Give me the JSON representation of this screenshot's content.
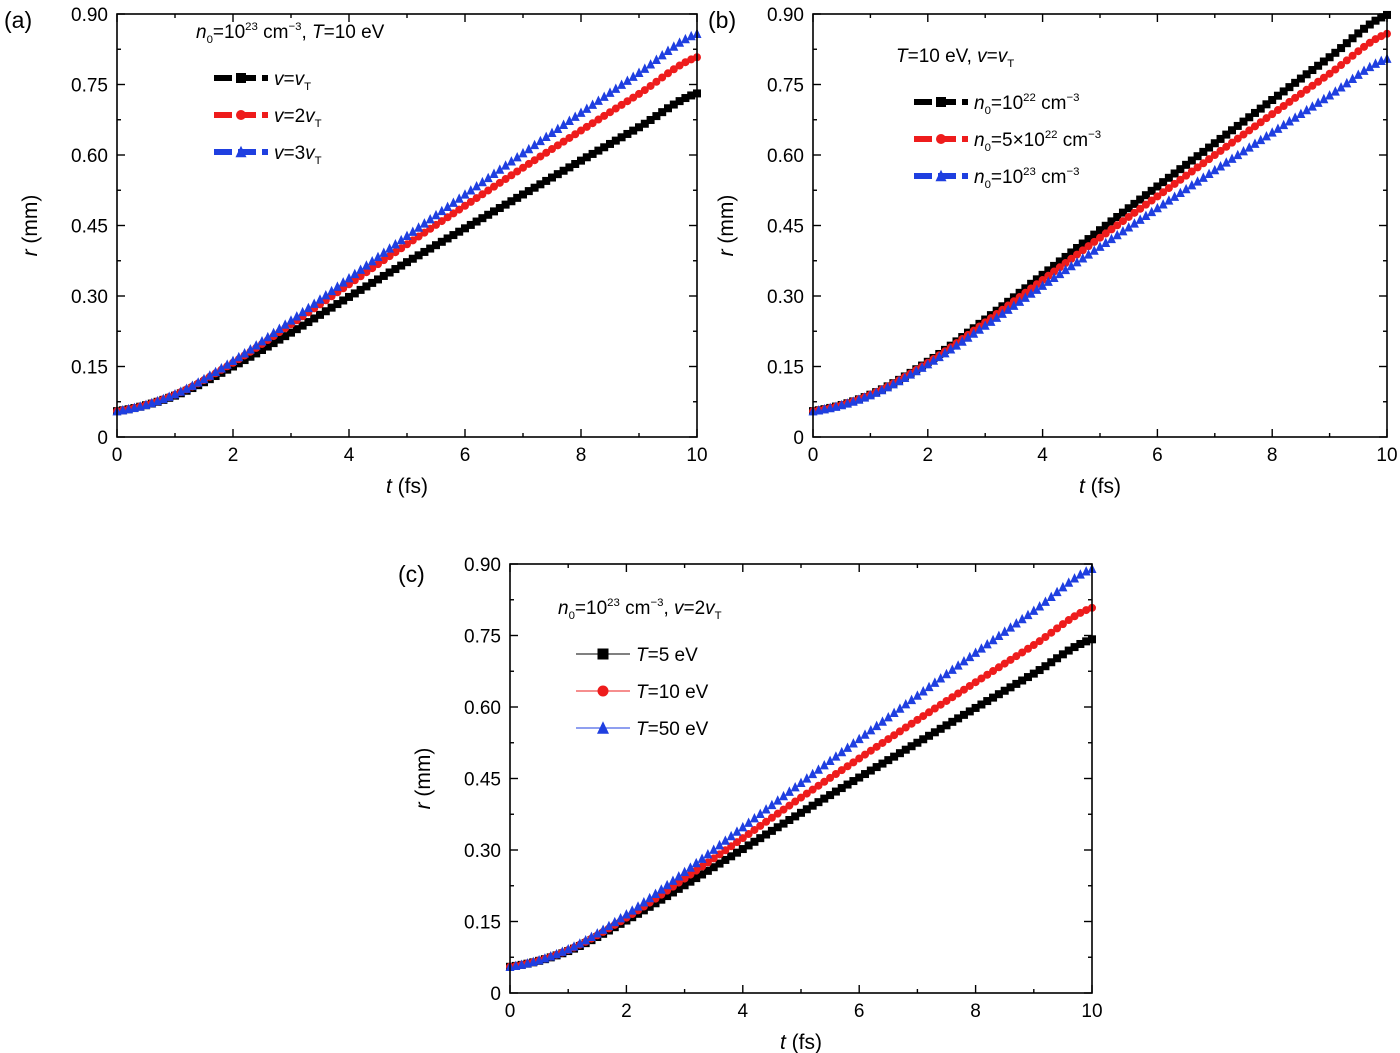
{
  "chart_data": [
    {
      "type": "scatter",
      "panel": "(a)",
      "condition_parts": [
        [
          "n",
          "0",
          "",
          "=10",
          "23",
          " cm",
          "−3",
          ",  "
        ],
        [
          "T",
          "",
          "",
          "=10 eV",
          "",
          "",
          "",
          ""
        ]
      ],
      "xlabel": {
        "var": "t",
        "unit": " (fs)"
      },
      "ylabel": {
        "var": "r",
        "unit": " (mm)"
      },
      "xlim": [
        0,
        10
      ],
      "ylim": [
        0,
        0.9
      ],
      "xticks": [
        0,
        2,
        4,
        6,
        8,
        10
      ],
      "xtick_labels": [
        "0",
        "2",
        "4",
        "6",
        "8",
        "10"
      ],
      "yticks": [
        0,
        0.15,
        0.3,
        0.45,
        0.6,
        0.75,
        0.9
      ],
      "ytick_labels": [
        "0",
        "0.15",
        "0.30",
        "0.45",
        "0.60",
        "0.75",
        "0.90"
      ],
      "legend_placement": "top-left",
      "legend_style": "thick",
      "series": [
        {
          "name": "v=vT",
          "label_parts": [
            [
              "v",
              "",
              "",
              "=",
              "",
              "",
              "",
              ""
            ],
            [
              "v",
              "T",
              "",
              "",
              "",
              "",
              "",
              ""
            ]
          ],
          "color": "#000000",
          "marker": "square",
          "x": [
            0,
            1,
            2,
            3,
            4,
            5,
            6,
            7,
            8,
            9,
            10
          ],
          "y": [
            0.055,
            0.088,
            0.15,
            0.222,
            0.298,
            0.372,
            0.444,
            0.516,
            0.588,
            0.659,
            0.731
          ]
        },
        {
          "name": "v=2vT",
          "label_parts": [
            [
              "v",
              "",
              "",
              "=2",
              "",
              "",
              "",
              ""
            ],
            [
              "v",
              "T",
              "",
              "",
              "",
              "",
              "",
              ""
            ]
          ],
          "color": "#ee1c1c",
          "marker": "circle",
          "x": [
            0,
            1,
            2,
            3,
            4,
            5,
            6,
            7,
            8,
            9,
            10
          ],
          "y": [
            0.055,
            0.09,
            0.158,
            0.24,
            0.325,
            0.41,
            0.492,
            0.573,
            0.652,
            0.73,
            0.808
          ]
        },
        {
          "name": "v=3vT",
          "label_parts": [
            [
              "v",
              "",
              "",
              "=3",
              "",
              "",
              "",
              ""
            ],
            [
              "v",
              "T",
              "",
              "",
              "",
              "",
              "",
              ""
            ]
          ],
          "color": "#1f3fe0",
          "marker": "triangle",
          "x": [
            0,
            1,
            2,
            3,
            4,
            5,
            6,
            7,
            8,
            9,
            10
          ],
          "y": [
            0.055,
            0.091,
            0.162,
            0.248,
            0.338,
            0.428,
            0.516,
            0.604,
            0.69,
            0.775,
            0.858
          ]
        }
      ]
    },
    {
      "type": "scatter",
      "panel": "(b)",
      "condition_parts": [
        [
          "T",
          "",
          "",
          "=10 eV,  ",
          "",
          "",
          "",
          ""
        ],
        [
          "v",
          "",
          "",
          "=",
          "",
          "",
          "",
          ""
        ],
        [
          "v",
          "T",
          "",
          "",
          "",
          "",
          "",
          ""
        ]
      ],
      "xlabel": {
        "var": "t",
        "unit": " (fs)"
      },
      "ylabel": {
        "var": "r",
        "unit": " (mm)"
      },
      "xlim": [
        0,
        10
      ],
      "ylim": [
        0,
        0.9
      ],
      "xticks": [
        0,
        2,
        4,
        6,
        8,
        10
      ],
      "xtick_labels": [
        "0",
        "2",
        "4",
        "6",
        "8",
        "10"
      ],
      "yticks": [
        0,
        0.15,
        0.3,
        0.45,
        0.6,
        0.75,
        0.9
      ],
      "ytick_labels": [
        "0",
        "0.15",
        "0.30",
        "0.45",
        "0.60",
        "0.75",
        "0.90"
      ],
      "legend_placement": "top-left",
      "legend_style": "thick",
      "series": [
        {
          "name": "n0=10^22 cm^-3",
          "label_parts": [
            [
              "n",
              "0",
              "",
              "=10",
              "22",
              " cm",
              "−3",
              ""
            ]
          ],
          "color": "#000000",
          "marker": "square",
          "x": [
            0,
            1,
            2,
            3,
            4,
            5,
            6,
            7,
            8,
            9,
            10
          ],
          "y": [
            0.055,
            0.09,
            0.16,
            0.25,
            0.345,
            0.44,
            0.533,
            0.625,
            0.717,
            0.808,
            0.898
          ]
        },
        {
          "name": "n0=5×10^22 cm^-3",
          "label_parts": [
            [
              "n",
              "0",
              "",
              "=5×10",
              "22",
              " cm",
              "−3",
              ""
            ]
          ],
          "color": "#ee1c1c",
          "marker": "circle",
          "x": [
            0,
            1,
            2,
            3,
            4,
            5,
            6,
            7,
            8,
            9,
            10
          ],
          "y": [
            0.055,
            0.09,
            0.158,
            0.244,
            0.334,
            0.424,
            0.512,
            0.6,
            0.687,
            0.773,
            0.858
          ]
        },
        {
          "name": "n0=10^23 cm^-3",
          "label_parts": [
            [
              "n",
              "0",
              "",
              "=10",
              "23",
              " cm",
              "−3",
              ""
            ]
          ],
          "color": "#1f3fe0",
          "marker": "triangle",
          "x": [
            0,
            1,
            2,
            3,
            4,
            5,
            6,
            7,
            8,
            9,
            10
          ],
          "y": [
            0.055,
            0.089,
            0.155,
            0.237,
            0.322,
            0.405,
            0.487,
            0.568,
            0.648,
            0.727,
            0.805
          ]
        }
      ]
    },
    {
      "type": "scatter",
      "panel": "(c)",
      "condition_parts": [
        [
          "n",
          "0",
          "",
          "=10",
          "23",
          " cm",
          "−3",
          ",  "
        ],
        [
          "v",
          "",
          "",
          "=2",
          "",
          "",
          "",
          ""
        ],
        [
          "v",
          "T",
          "",
          "",
          "",
          "",
          "",
          ""
        ]
      ],
      "xlabel": {
        "var": "t",
        "unit": " (fs)"
      },
      "ylabel": {
        "var": "r",
        "unit": " (mm)"
      },
      "xlim": [
        0,
        10
      ],
      "ylim": [
        0,
        0.9
      ],
      "xticks": [
        0,
        2,
        4,
        6,
        8,
        10
      ],
      "xtick_labels": [
        "0",
        "2",
        "4",
        "6",
        "8",
        "10"
      ],
      "yticks": [
        0,
        0.15,
        0.3,
        0.45,
        0.6,
        0.75,
        0.9
      ],
      "ytick_labels": [
        "0",
        "0.15",
        "0.30",
        "0.45",
        "0.60",
        "0.75",
        "0.90"
      ],
      "legend_placement": "top-left",
      "legend_style": "thin",
      "series": [
        {
          "name": "T=5 eV",
          "label_parts": [
            [
              "T",
              "",
              "",
              "=5 eV",
              "",
              "",
              "",
              ""
            ]
          ],
          "color": "#000000",
          "marker": "square",
          "x": [
            0,
            1,
            2,
            3,
            4,
            5,
            6,
            7,
            8,
            9,
            10
          ],
          "y": [
            0.055,
            0.088,
            0.152,
            0.226,
            0.302,
            0.378,
            0.452,
            0.525,
            0.598,
            0.67,
            0.742
          ]
        },
        {
          "name": "T=10 eV",
          "label_parts": [
            [
              "T",
              "",
              "",
              "=10 eV",
              "",
              "",
              "",
              ""
            ]
          ],
          "color": "#ee1c1c",
          "marker": "circle",
          "x": [
            0,
            1,
            2,
            3,
            4,
            5,
            6,
            7,
            8,
            9,
            10
          ],
          "y": [
            0.055,
            0.09,
            0.158,
            0.24,
            0.325,
            0.41,
            0.492,
            0.573,
            0.652,
            0.73,
            0.808
          ]
        },
        {
          "name": "T=50 eV",
          "label_parts": [
            [
              "T",
              "",
              "",
              "=50 eV",
              "",
              "",
              "",
              ""
            ]
          ],
          "color": "#1f3fe0",
          "marker": "triangle",
          "x": [
            0,
            1,
            2,
            3,
            4,
            5,
            6,
            7,
            8,
            9,
            10
          ],
          "y": [
            0.055,
            0.092,
            0.165,
            0.254,
            0.348,
            0.441,
            0.533,
            0.624,
            0.714,
            0.802,
            0.89
          ]
        }
      ]
    }
  ]
}
